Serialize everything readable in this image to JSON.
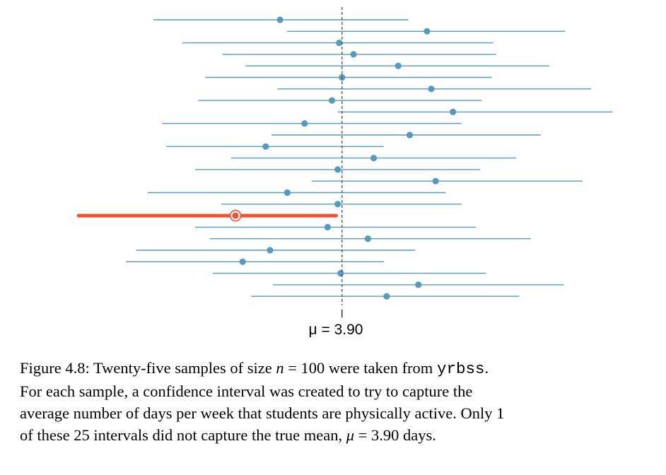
{
  "chart_data": {
    "type": "interval",
    "center_label_prefix": "μ = ",
    "true_mean": 3.9,
    "true_mean_text": "3.90",
    "x_range": [
      2.05,
      5.6
    ],
    "intervals": [
      {
        "mean": 3.47,
        "lower": 2.59,
        "upper": 4.36,
        "captures": true
      },
      {
        "mean": 4.49,
        "lower": 3.52,
        "upper": 5.45,
        "captures": true
      },
      {
        "mean": 3.88,
        "lower": 2.79,
        "upper": 4.95,
        "captures": true
      },
      {
        "mean": 3.98,
        "lower": 3.07,
        "upper": 4.97,
        "captures": true
      },
      {
        "mean": 4.29,
        "lower": 3.23,
        "upper": 5.34,
        "captures": true
      },
      {
        "mean": 3.9,
        "lower": 2.95,
        "upper": 4.94,
        "captures": true
      },
      {
        "mean": 4.52,
        "lower": 3.45,
        "upper": 5.63,
        "captures": true
      },
      {
        "mean": 3.83,
        "lower": 2.9,
        "upper": 4.87,
        "captures": true
      },
      {
        "mean": 4.67,
        "lower": 3.87,
        "upper": 5.78,
        "captures": true
      },
      {
        "mean": 3.64,
        "lower": 2.65,
        "upper": 4.73,
        "captures": true
      },
      {
        "mean": 4.37,
        "lower": 3.41,
        "upper": 5.28,
        "captures": true
      },
      {
        "mean": 3.37,
        "lower": 2.68,
        "upper": 4.19,
        "captures": true
      },
      {
        "mean": 4.12,
        "lower": 3.13,
        "upper": 5.11,
        "captures": true
      },
      {
        "mean": 3.87,
        "lower": 2.88,
        "upper": 4.86,
        "captures": true
      },
      {
        "mean": 4.55,
        "lower": 3.69,
        "upper": 5.57,
        "captures": true
      },
      {
        "mean": 3.52,
        "lower": 2.55,
        "upper": 4.62,
        "captures": true
      },
      {
        "mean": 3.87,
        "lower": 3.06,
        "upper": 4.73,
        "captures": true
      },
      {
        "mean": 3.16,
        "lower": 2.07,
        "upper": 3.86,
        "captures": false
      },
      {
        "mean": 3.8,
        "lower": 2.88,
        "upper": 4.83,
        "captures": true
      },
      {
        "mean": 4.08,
        "lower": 2.98,
        "upper": 5.21,
        "captures": true
      },
      {
        "mean": 3.4,
        "lower": 2.47,
        "upper": 4.41,
        "captures": true
      },
      {
        "mean": 3.21,
        "lower": 2.4,
        "upper": 4.19,
        "captures": true
      },
      {
        "mean": 3.89,
        "lower": 3.0,
        "upper": 4.9,
        "captures": true
      },
      {
        "mean": 4.43,
        "lower": 3.42,
        "upper": 5.44,
        "captures": true
      },
      {
        "mean": 4.21,
        "lower": 3.27,
        "upper": 5.13,
        "captures": true
      }
    ],
    "colors": {
      "capture": "#569bbd",
      "miss": "#f05133",
      "mean_line": "#444444"
    }
  },
  "caption": {
    "figure_label": "Figure 4.8:",
    "text1": " Twenty-five samples of size ",
    "n_symbol": "n",
    "text2": " = 100 were taken from ",
    "dataset": "yrbss",
    "text3": ".",
    "line2": "For each sample, a confidence interval was created to try to capture the",
    "line3": "average number of days per week that students are physically active. Only 1",
    "line4a": "of these 25 intervals did not capture the true mean, ",
    "mu_symbol": "μ",
    "line4b": " = 3.90 days."
  }
}
